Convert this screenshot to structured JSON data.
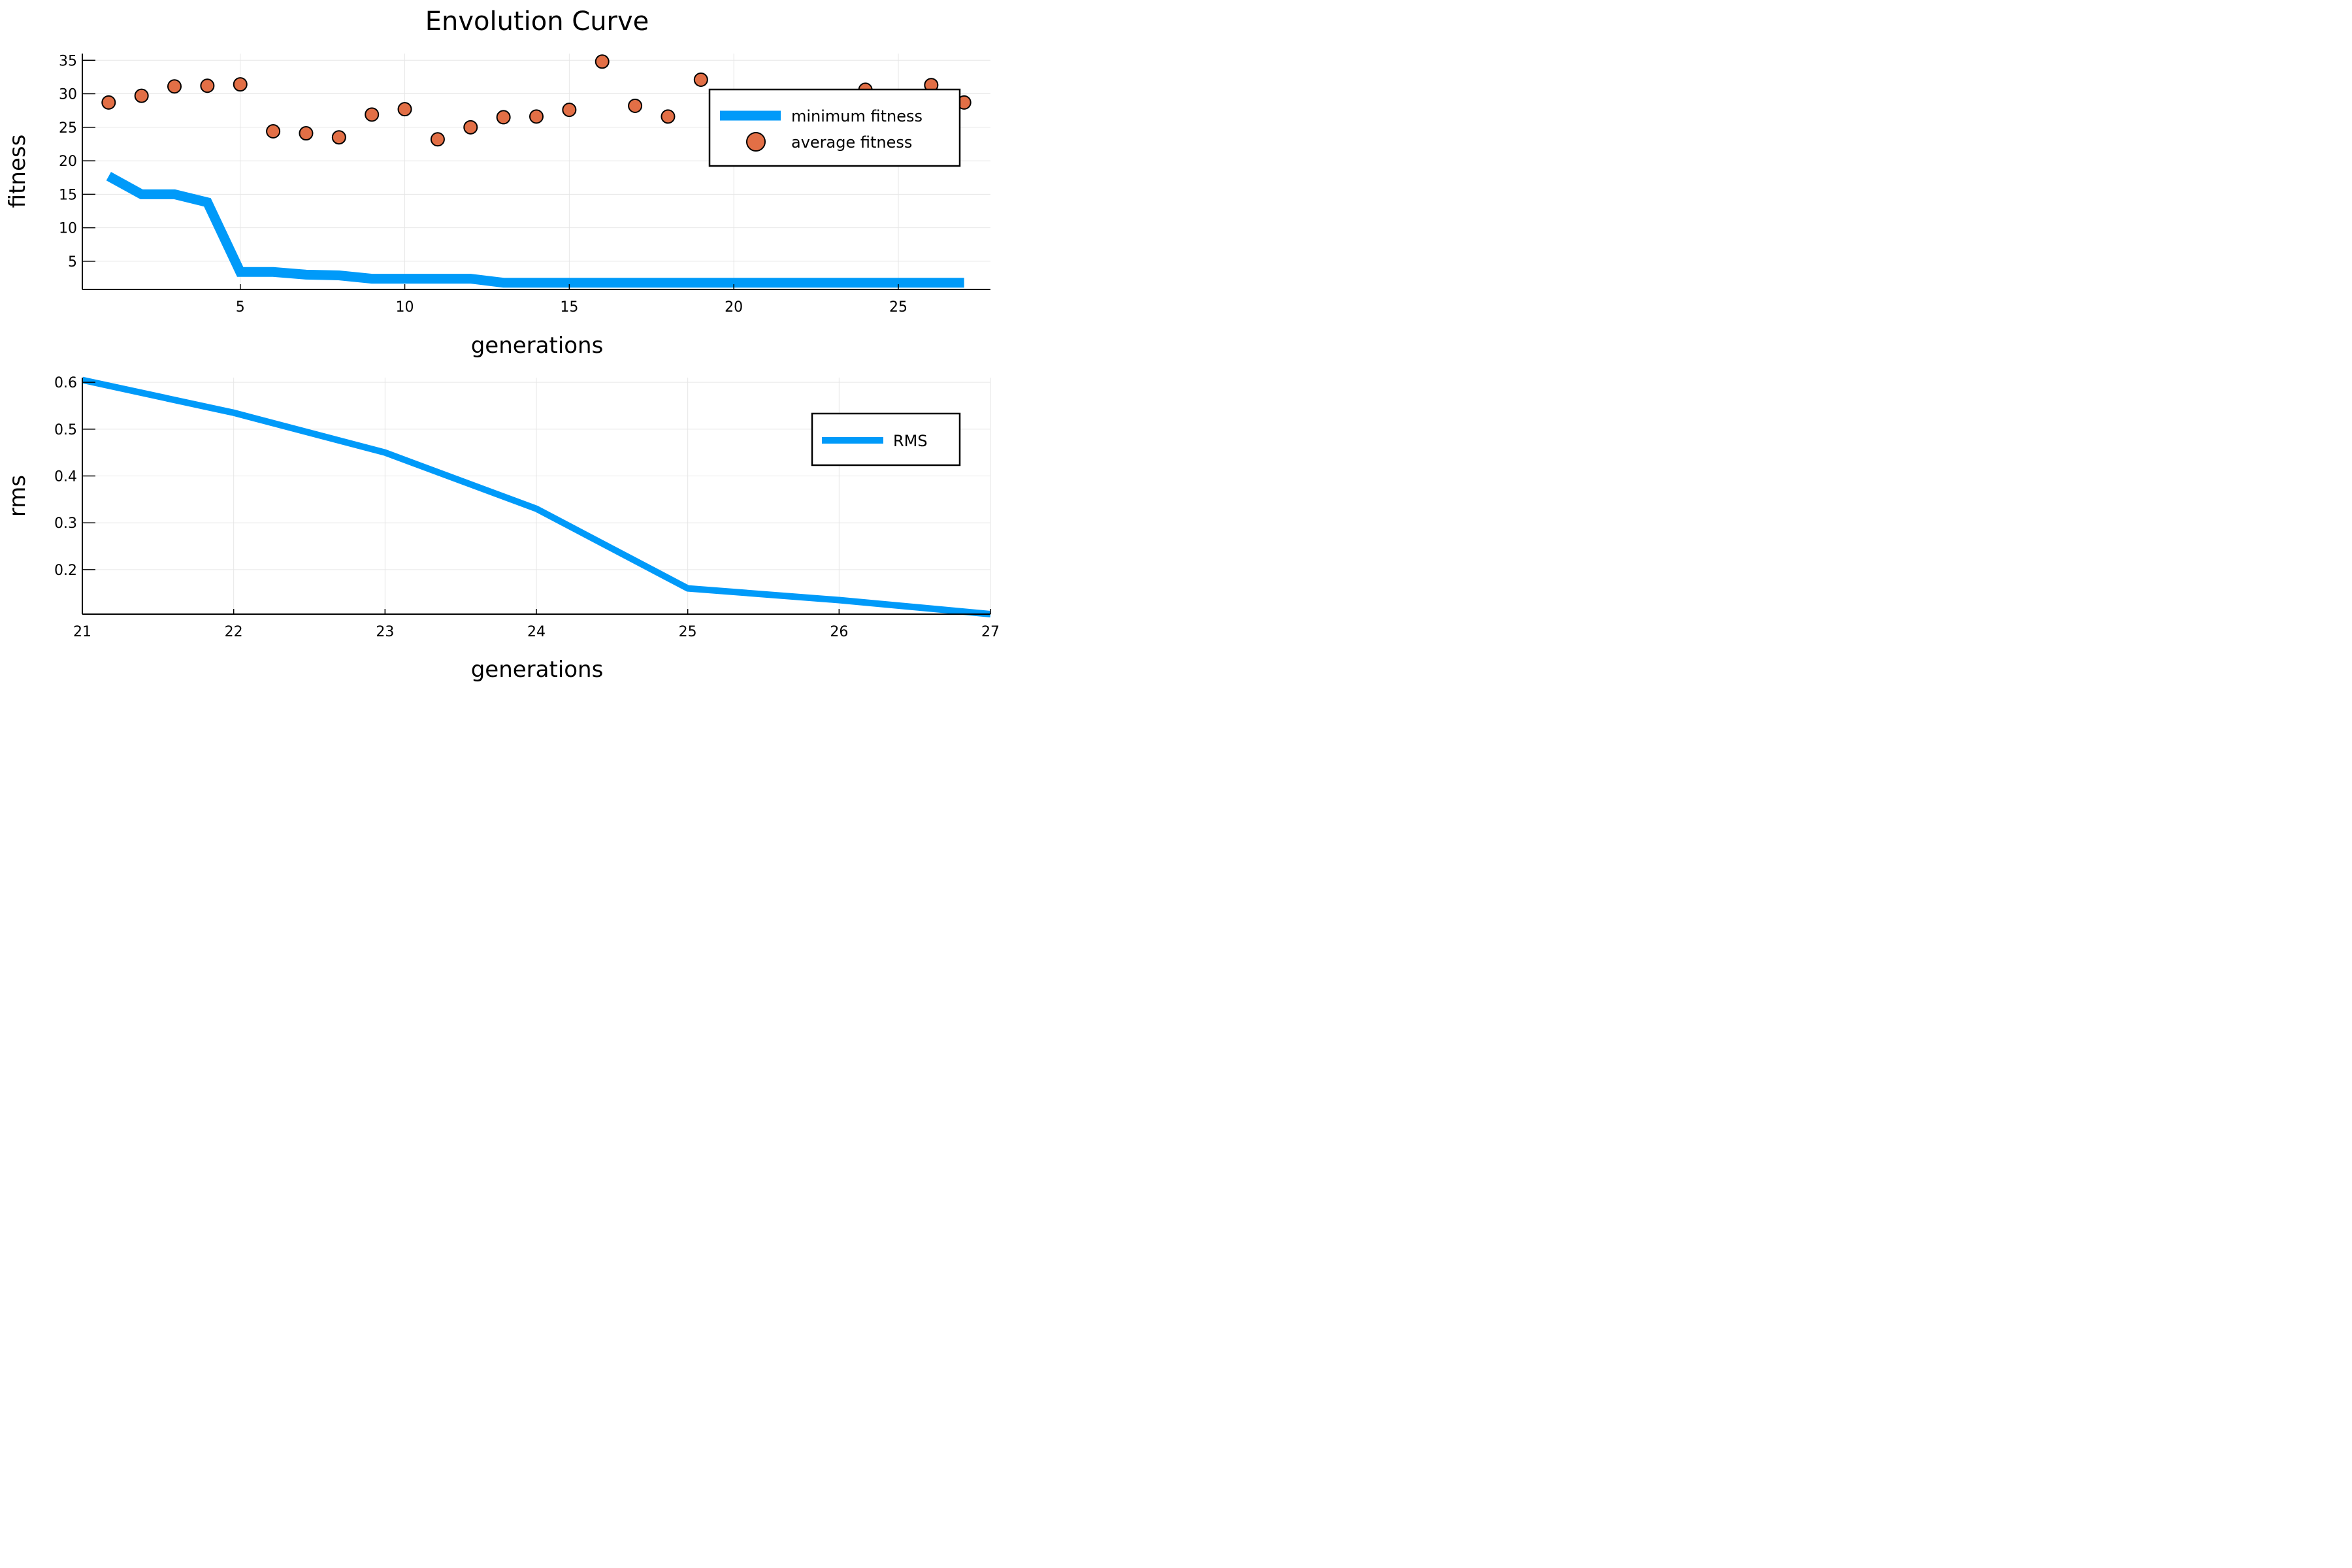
{
  "title": "Envolution Curve",
  "colors": {
    "line": "#009af9",
    "marker": "#e26f46",
    "marker_edge": "#000000"
  },
  "chart_data": [
    {
      "type": "line",
      "xlabel": "generations",
      "ylabel": "fitness",
      "xlim": [
        0.2,
        27.8
      ],
      "ylim": [
        0.8,
        36
      ],
      "xticks": [
        5,
        10,
        15,
        20,
        25
      ],
      "yticks": [
        5,
        10,
        15,
        20,
        25,
        30,
        35
      ],
      "grid": true,
      "legend_position": "top-right",
      "series": [
        {
          "name": "minimum fitness",
          "kind": "line",
          "x": [
            1,
            2,
            3,
            4,
            5,
            6,
            7,
            8,
            9,
            10,
            11,
            12,
            13,
            14,
            15,
            16,
            17,
            18,
            19,
            20,
            21,
            22,
            23,
            24,
            25,
            26,
            27
          ],
          "values": [
            17.7,
            15.0,
            15.0,
            13.8,
            3.4,
            3.4,
            3.0,
            2.9,
            2.4,
            2.4,
            2.4,
            2.4,
            1.8,
            1.8,
            1.8,
            1.8,
            1.8,
            1.8,
            1.8,
            1.8,
            1.8,
            1.8,
            1.8,
            1.8,
            1.8,
            1.8,
            1.8
          ]
        },
        {
          "name": "average fitness",
          "kind": "scatter",
          "x": [
            1,
            2,
            3,
            4,
            5,
            6,
            7,
            8,
            9,
            10,
            11,
            12,
            13,
            14,
            15,
            16,
            17,
            18,
            19,
            24,
            26,
            27
          ],
          "values": [
            28.7,
            29.7,
            31.1,
            31.2,
            31.4,
            24.4,
            24.1,
            23.5,
            26.9,
            27.7,
            23.2,
            25.0,
            26.5,
            26.6,
            27.6,
            34.8,
            28.2,
            26.6,
            32.1,
            30.6,
            31.3,
            28.7
          ]
        }
      ]
    },
    {
      "type": "line",
      "xlabel": "generations",
      "ylabel": "rms",
      "xlim": [
        21,
        27
      ],
      "ylim": [
        0.105,
        0.61
      ],
      "xticks": [
        21,
        22,
        23,
        24,
        25,
        26,
        27
      ],
      "yticks": [
        0.2,
        0.3,
        0.4,
        0.5,
        0.6
      ],
      "grid": true,
      "legend_position": "top-right",
      "series": [
        {
          "name": "RMS",
          "kind": "line",
          "x": [
            21,
            22,
            23,
            24,
            25,
            26,
            27
          ],
          "values": [
            0.605,
            0.535,
            0.45,
            0.33,
            0.16,
            0.135,
            0.105
          ]
        }
      ]
    }
  ]
}
